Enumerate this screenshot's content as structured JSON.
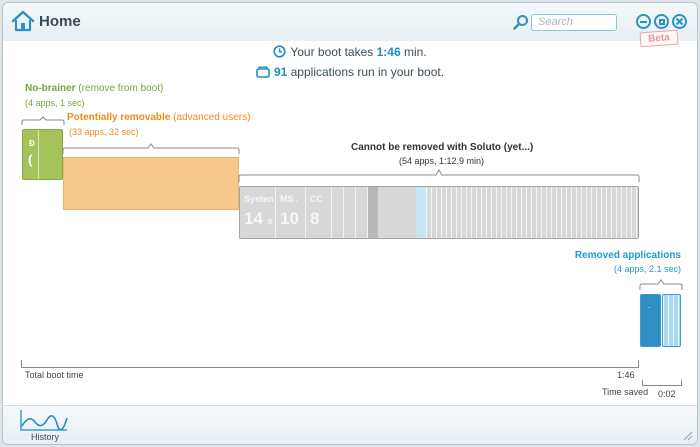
{
  "window": {
    "title": "Home"
  },
  "search": {
    "placeholder": "Search"
  },
  "beta_label": "Beta",
  "summary": {
    "boot_prefix": "Your boot takes ",
    "boot_time": "1:46",
    "boot_suffix": " min.",
    "apps_count": "91",
    "apps_suffix": " applications run in your boot."
  },
  "groups": {
    "no_brainer": {
      "title": "No-brainer",
      "note": "(remove from boot)",
      "sub": "(4 apps, 1 sec)"
    },
    "removable": {
      "title": "Potentially removable",
      "note": "(advanced users)",
      "sub": "(33 apps, 32 sec)"
    },
    "cannot_remove": {
      "title": "Cannot be removed with Soluto (yet...)",
      "sub": "(54 apps, 1:12.9 min)"
    },
    "removed": {
      "title": "Removed applications",
      "sub": "(4 apps, 2.1 sec)"
    }
  },
  "green_bar": {
    "cell1": "Đ",
    "cell2": "("
  },
  "gray_cells": [
    {
      "name": "Systen",
      "value": "14",
      "unit": "s"
    },
    {
      "name": "MS .",
      "value": "10",
      "unit": ""
    },
    {
      "name": "CC",
      "value": "8",
      "unit": ""
    }
  ],
  "axis": {
    "total_label": "Total boot time",
    "total_value": "1:46",
    "saved_label": "Time saved",
    "saved_value": "0:02"
  },
  "footer": {
    "history_label": "History"
  },
  "colors": {
    "accent": "#1e8fc0",
    "no_brainer": "#7ba534",
    "removable": "#f08a1c",
    "removed": "#1e9ad0",
    "cannot_remove": "#333333"
  }
}
